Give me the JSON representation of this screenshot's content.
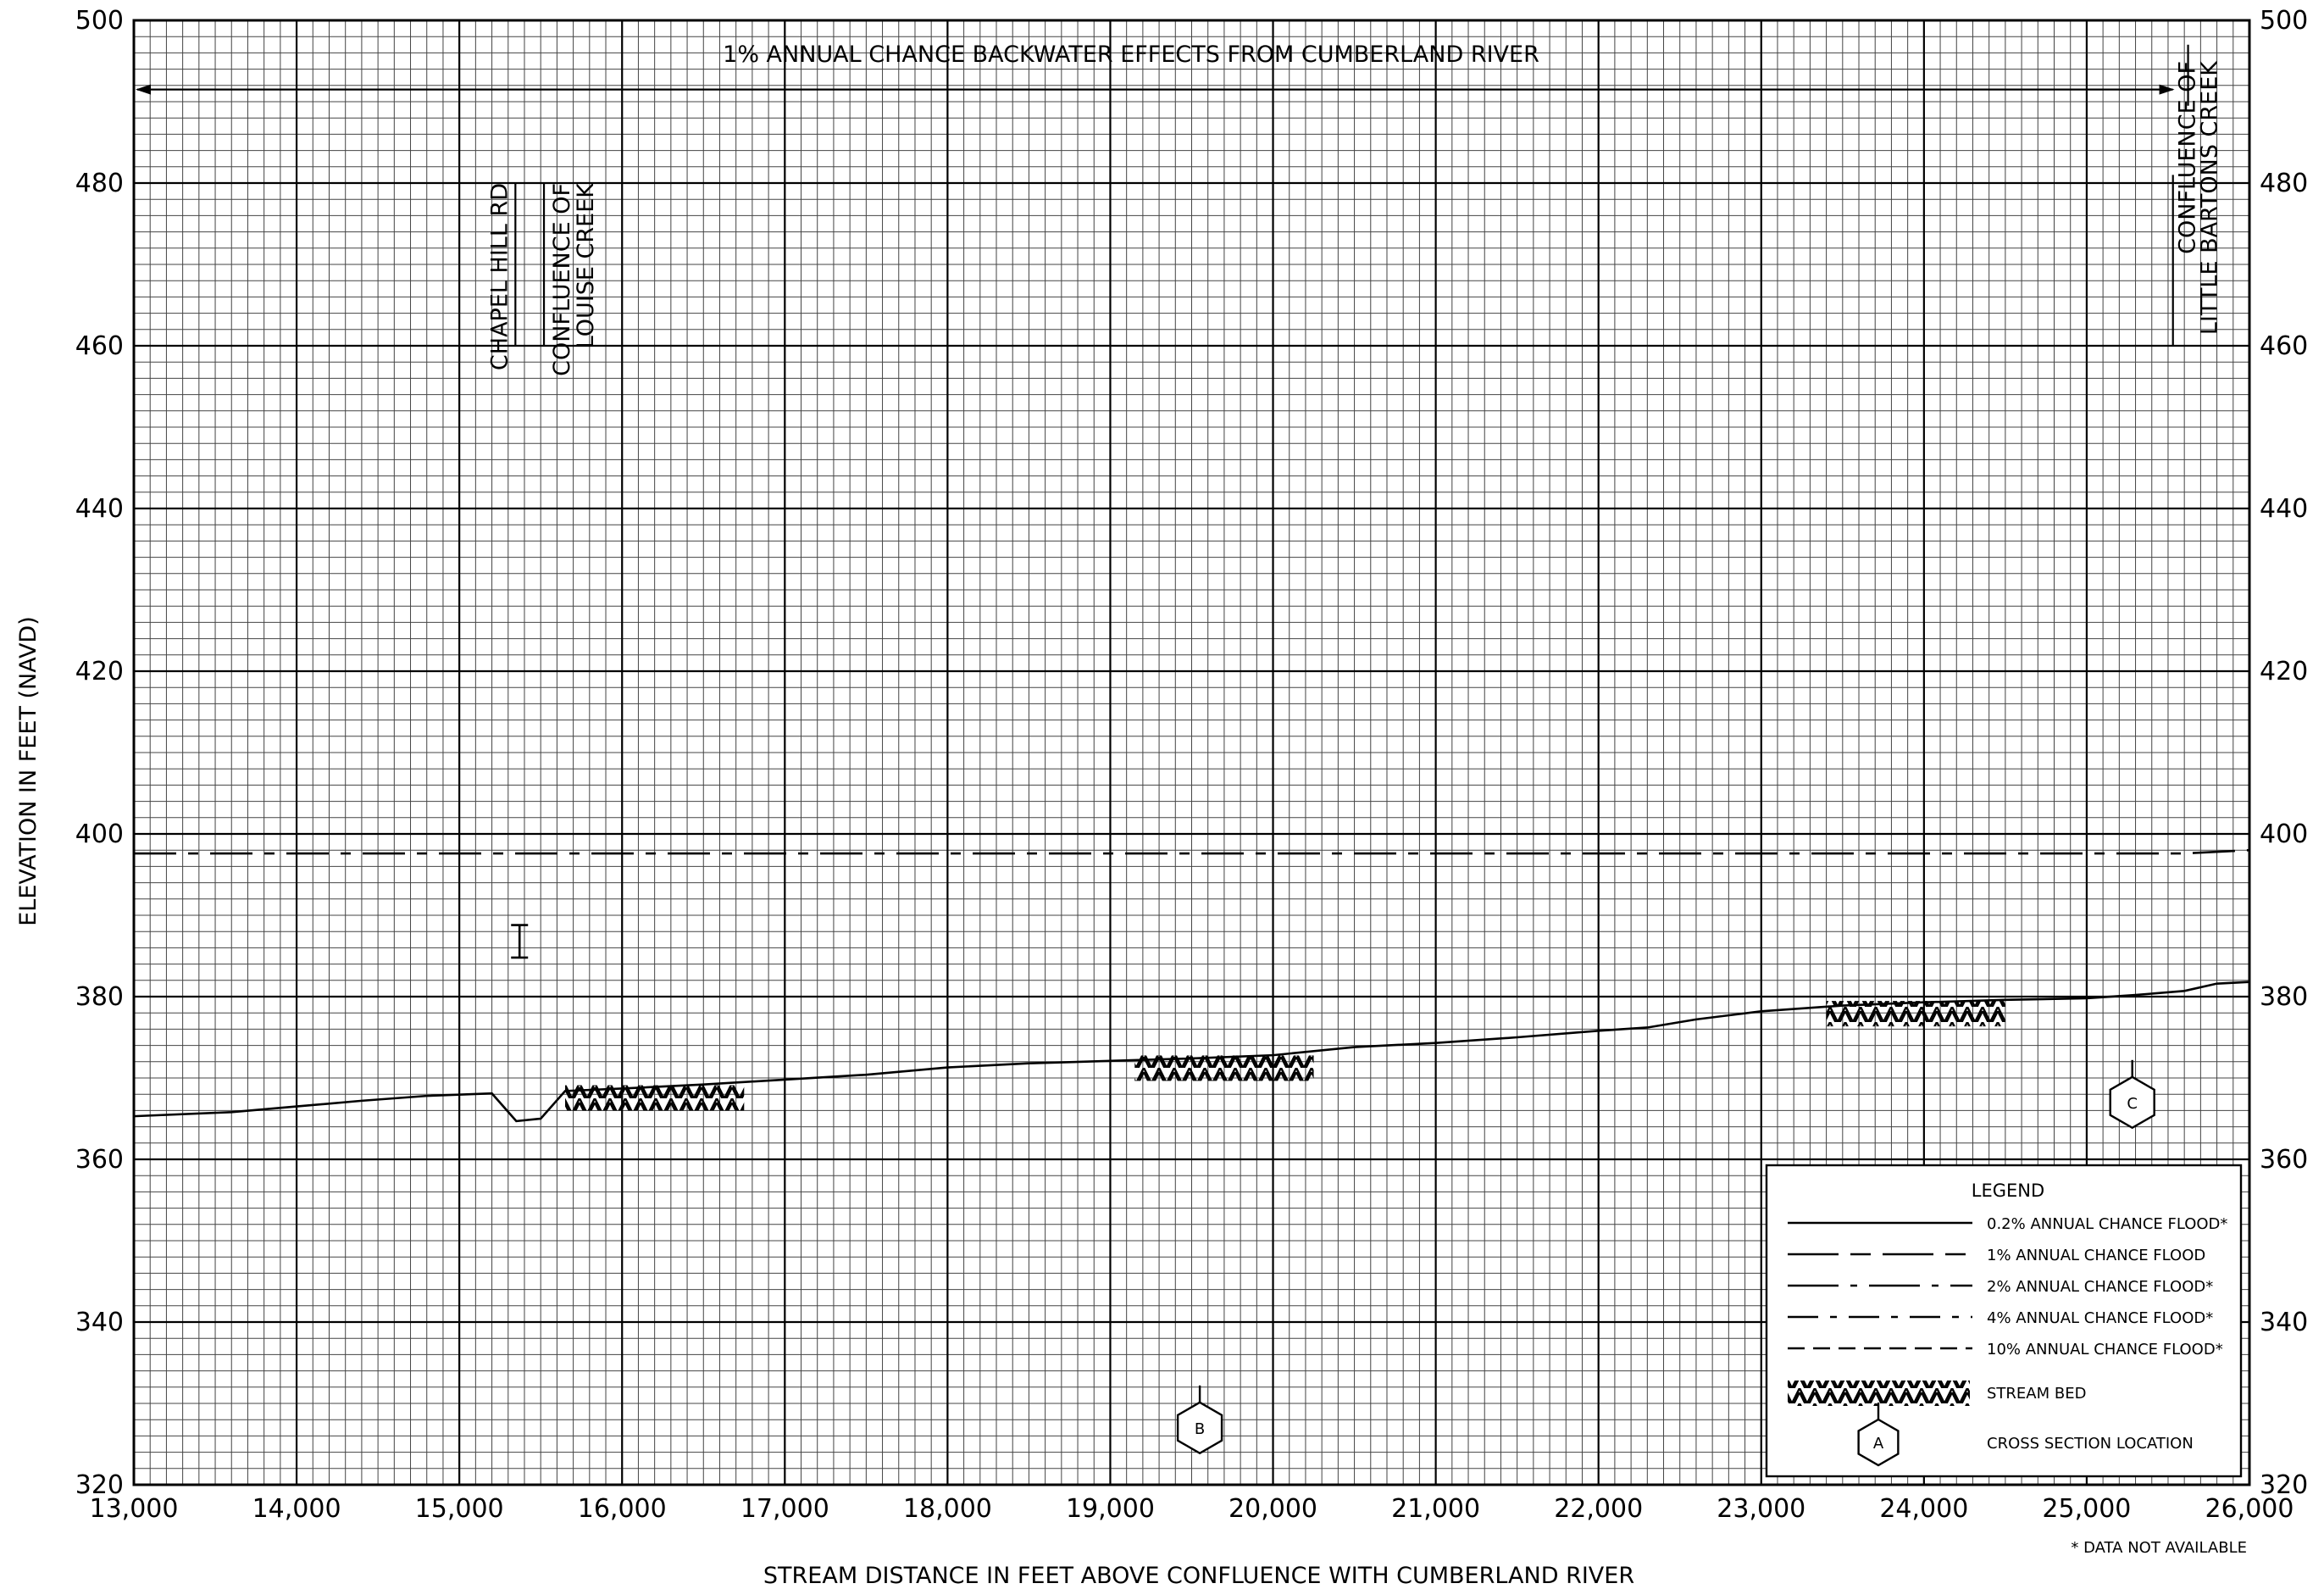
{
  "chart_data": {
    "type": "line",
    "xlabel": "STREAM DISTANCE IN FEET ABOVE CONFLUENCE WITH CUMBERLAND RIVER",
    "ylabel": "ELEVATION IN FEET (NAVD)",
    "xlim": [
      13000,
      26000
    ],
    "ylim": [
      320,
      500
    ],
    "grid": true,
    "x_ticks": [
      13000,
      14000,
      15000,
      16000,
      17000,
      18000,
      19000,
      20000,
      21000,
      22000,
      23000,
      24000,
      25000,
      26000
    ],
    "x_tick_labels": [
      "13,000",
      "14,000",
      "15,000",
      "16,000",
      "17,000",
      "18,000",
      "19,000",
      "20,000",
      "21,000",
      "22,000",
      "23,000",
      "24,000",
      "25,000",
      "26,000"
    ],
    "y_ticks": [
      320,
      340,
      360,
      380,
      400,
      420,
      440,
      460,
      480,
      500
    ],
    "y_tick_labels": [
      "320",
      "340",
      "360",
      "380",
      "400",
      "420",
      "440",
      "460",
      "480",
      "500"
    ],
    "series": [
      {
        "name": "1% ANNUAL CHANCE FLOOD",
        "style": "dash-dot",
        "x": [
          13000,
          15000,
          17000,
          19000,
          21000,
          23000,
          25000,
          25600,
          26000
        ],
        "y": [
          397.6,
          397.6,
          397.6,
          397.6,
          397.6,
          397.6,
          397.6,
          397.6,
          398.0
        ]
      },
      {
        "name": "STREAM BED",
        "style": "solid",
        "x": [
          13000,
          13600,
          14000,
          14400,
          14800,
          15200,
          15350,
          15500,
          15650,
          16000,
          16500,
          17000,
          17500,
          18000,
          18500,
          19000,
          19500,
          20000,
          20500,
          21000,
          21500,
          22000,
          22300,
          22600,
          23000,
          23500,
          24000,
          24500,
          25000,
          25300,
          25600,
          25800,
          26000
        ],
        "y": [
          365.3,
          365.8,
          366.5,
          367.2,
          367.8,
          368.1,
          364.7,
          365.0,
          368.4,
          368.7,
          369.2,
          369.8,
          370.4,
          371.3,
          371.8,
          372.1,
          372.4,
          372.8,
          373.8,
          374.3,
          375.0,
          375.8,
          376.2,
          377.2,
          378.2,
          378.9,
          379.3,
          379.6,
          379.8,
          380.2,
          380.7,
          381.6,
          381.8
        ]
      }
    ],
    "stream_bed_hatch_segments": [
      [
        15650,
        16750
      ],
      [
        19150,
        20250
      ],
      [
        23400,
        24500
      ]
    ],
    "bridge": {
      "x": 15370,
      "top": 388.8,
      "bottom": 384.8
    },
    "structures": [
      {
        "label": "CHAPEL HILL RD",
        "x": 15230
      },
      {
        "label_lines": [
          "CONFLUENCE OF",
          "LOUISE CREEK"
        ],
        "x": 15520
      },
      {
        "label_lines": [
          "CONFLUENCE OF",
          "LITTLE BARTONS CREEK"
        ],
        "x": 25530
      }
    ],
    "backwater_note": {
      "text": "1% ANNUAL CHANCE BACKWATER EFFECTS FROM CUMBERLAND RIVER",
      "x_start": 13000,
      "x_end": 25550
    },
    "cross_sections": [
      {
        "label": "B",
        "x": 19550,
        "y": 327.0
      },
      {
        "label": "C",
        "x": 25280,
        "y": 367.0
      }
    ],
    "legend": {
      "title": "LEGEND",
      "position": "bottom-right",
      "entries": [
        {
          "label": "0.2% ANNUAL CHANCE FLOOD*",
          "style": "solid"
        },
        {
          "label": "1% ANNUAL CHANCE FLOOD",
          "style": "long-dash-dash"
        },
        {
          "label": "2% ANNUAL CHANCE FLOOD*",
          "style": "long-dash-dot"
        },
        {
          "label": "4% ANNUAL CHANCE FLOOD*",
          "style": "dash-dot"
        },
        {
          "label": "10% ANNUAL CHANCE FLOOD*",
          "style": "dashed"
        },
        {
          "label": "STREAM BED",
          "style": "hatch"
        },
        {
          "label": "CROSS SECTION LOCATION",
          "style": "hexagon",
          "symbol_label": "A"
        }
      ]
    },
    "footnote": "* DATA NOT AVAILABLE",
    "colors": {
      "ink": "#000000",
      "background": "#ffffff",
      "minor_grid": "#444444"
    }
  }
}
